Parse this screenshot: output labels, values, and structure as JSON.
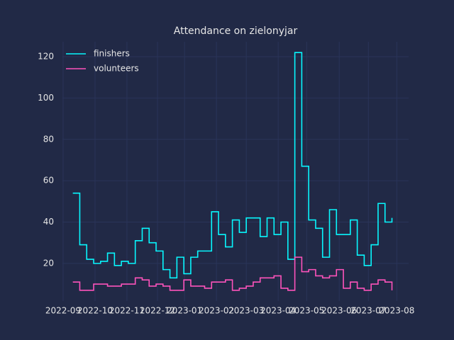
{
  "chart_data": {
    "type": "line",
    "step": "post",
    "title": "Attendance on zielonyjar",
    "x": [
      0,
      1,
      2,
      3,
      4,
      5,
      6,
      7,
      8,
      9,
      10,
      11,
      12,
      13,
      14,
      15,
      16,
      17,
      18,
      19,
      20,
      21,
      22,
      23,
      24,
      25,
      26,
      27,
      28,
      29,
      30,
      31,
      32,
      33,
      34,
      35,
      36,
      37,
      38,
      39,
      40,
      41,
      42,
      43,
      44,
      45,
      46
    ],
    "series": [
      {
        "name": "finishers",
        "color": "#08F7FE",
        "values": [
          54,
          29,
          22,
          20,
          21,
          25,
          19,
          21,
          20,
          31,
          37,
          30,
          26,
          17,
          13,
          23,
          15,
          23,
          26,
          26,
          45,
          34,
          28,
          41,
          35,
          42,
          42,
          33,
          42,
          34,
          40,
          22,
          122,
          67,
          41,
          37,
          23,
          46,
          34,
          34,
          41,
          24,
          19,
          29,
          49,
          40,
          42
        ]
      },
      {
        "name": "volunteers",
        "color": "#FE53BB",
        "values": [
          11,
          7,
          7,
          10,
          10,
          9,
          9,
          10,
          10,
          13,
          12,
          9,
          10,
          9,
          7,
          7,
          12,
          9,
          9,
          8,
          11,
          11,
          12,
          7,
          8,
          9,
          11,
          13,
          13,
          14,
          8,
          7,
          23,
          16,
          17,
          14,
          13,
          14,
          17,
          8,
          11,
          8,
          7,
          10,
          12,
          11,
          7
        ]
      }
    ],
    "xlim": [
      -1.5,
      48.4
    ],
    "xticks": [
      {
        "value": -1.4,
        "label": "2022-09"
      },
      {
        "value": 3.2,
        "label": "2022-10"
      },
      {
        "value": 7.8,
        "label": "2022-11"
      },
      {
        "value": 12.2,
        "label": "2022-12"
      },
      {
        "value": 16.1,
        "label": "2023-01"
      },
      {
        "value": 20.7,
        "label": "2023-02"
      },
      {
        "value": 25.0,
        "label": "2023-03"
      },
      {
        "value": 29.6,
        "label": "2023-04"
      },
      {
        "value": 33.7,
        "label": "2023-05"
      },
      {
        "value": 38.4,
        "label": "2023-06"
      },
      {
        "value": 42.6,
        "label": "2023-07"
      },
      {
        "value": 46.7,
        "label": "2023-08"
      }
    ],
    "ylim": [
      1.8,
      127.2
    ],
    "yticks": [
      20,
      40,
      60,
      80,
      100,
      120
    ],
    "grid": true,
    "legend": "upper left"
  }
}
